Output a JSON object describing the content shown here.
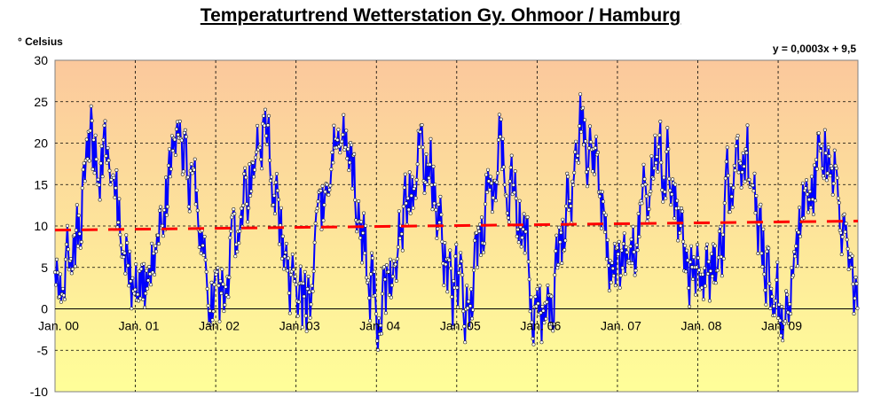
{
  "chart_data": {
    "type": "line",
    "title": "Temperaturtrend Wetterstation Gy. Ohmoor / Hamburg",
    "ylabel": "° Celsius",
    "equation": "y = 0,0003x + 9,5",
    "ylim": [
      -10,
      30
    ],
    "yticks": [
      "30",
      "25",
      "20",
      "15",
      "10",
      "5",
      "0",
      "-5",
      "-10"
    ],
    "ytick_values": [
      30,
      25,
      20,
      15,
      10,
      5,
      0,
      -5,
      -10
    ],
    "x_categories": [
      "Jan. 00",
      "Jan. 01",
      "Jan. 02",
      "Jan. 03",
      "Jan. 04",
      "Jan. 05",
      "Jan. 06",
      "Jan. 07",
      "Jan. 08",
      "Jan. 09"
    ],
    "x_range_days": [
      0,
      3650
    ],
    "grid": true,
    "series": [
      {
        "name": "",
        "kind": "daily temperature",
        "color": "#0000ff",
        "marker": "white circle",
        "values_approx_monthly": [
          4.5,
          4.5,
          6.5,
          9.5,
          16,
          20,
          17,
          18,
          14,
          11,
          7.5,
          3,
          0.5,
          2.5,
          5,
          8,
          14,
          17,
          20,
          19,
          13,
          11,
          5,
          1,
          -1,
          4.5,
          6,
          8.5,
          14,
          17,
          19,
          21,
          15,
          10,
          6,
          2.5,
          -1,
          1,
          4.5,
          9,
          15,
          20,
          21,
          22,
          16,
          8,
          6,
          1.5,
          -1,
          2.5,
          4.5,
          8.5,
          12,
          15,
          18,
          19,
          15,
          11,
          5.5,
          2,
          2.5,
          0.5,
          2,
          9,
          12,
          16,
          19,
          17,
          15,
          10,
          5.5,
          1.5,
          -1,
          0,
          1,
          8,
          13,
          17,
          22,
          17,
          17,
          13,
          8,
          5,
          5,
          6,
          7,
          11,
          14,
          17,
          17,
          17,
          14,
          9,
          5.5,
          2,
          3.5,
          4,
          4.5,
          8,
          14,
          17,
          19,
          18,
          13,
          9,
          5,
          2,
          -1.5,
          1,
          4.5,
          12,
          14,
          16,
          19,
          20,
          16,
          9,
          8,
          1
        ]
      },
      {
        "name": "",
        "kind": "linear trend",
        "color": "#ff0000",
        "style": "dashed",
        "equation": "y = 0,0003x + 9,5",
        "slope": 0.0003,
        "intercept": 9.5
      }
    ],
    "background_gradient": {
      "top": "#fbc89c",
      "bottom": "#ffff99"
    }
  }
}
